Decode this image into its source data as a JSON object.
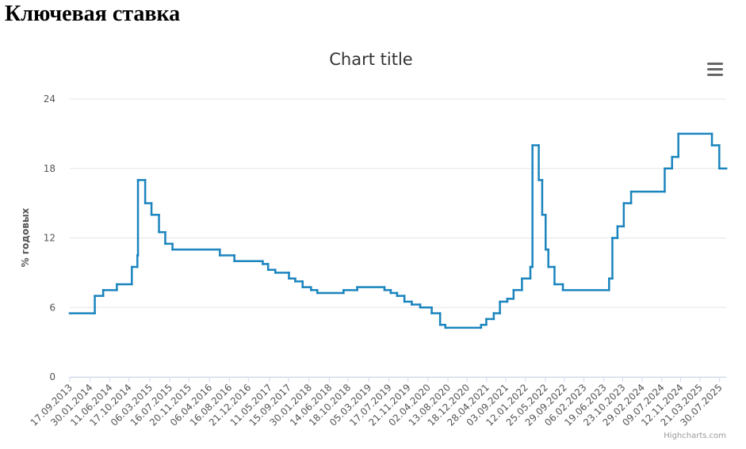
{
  "heading": "Ключевая ставка",
  "chart_data": {
    "type": "line",
    "step": true,
    "title": "Chart title",
    "y_label": "% годовых",
    "credits": "Highcharts.com",
    "series": [
      {
        "color": "#1a84be",
        "x": [
          "2013-09-17",
          "2014-03-03",
          "2014-04-28",
          "2014-07-28",
          "2014-11-05",
          "2014-12-12",
          "2014-12-16",
          "2015-02-02",
          "2015-03-16",
          "2015-05-05",
          "2015-06-16",
          "2015-08-03",
          "2016-06-14",
          "2016-09-19",
          "2017-03-27",
          "2017-05-02",
          "2017-06-19",
          "2017-09-18",
          "2017-10-30",
          "2017-12-18",
          "2018-02-12",
          "2018-03-26",
          "2018-09-17",
          "2018-12-17",
          "2019-06-17",
          "2019-07-29",
          "2019-09-09",
          "2019-10-28",
          "2019-12-16",
          "2020-02-10",
          "2020-04-27",
          "2020-06-22",
          "2020-07-27",
          "2021-03-22",
          "2021-04-26",
          "2021-06-15",
          "2021-07-26",
          "2021-09-13",
          "2021-10-25",
          "2021-12-20",
          "2022-02-14",
          "2022-02-28",
          "2022-04-11",
          "2022-05-04",
          "2022-05-27",
          "2022-06-14",
          "2022-07-25",
          "2022-09-19",
          "2023-07-24",
          "2023-08-15",
          "2023-09-18",
          "2023-10-30",
          "2023-12-18",
          "2024-07-29",
          "2024-09-16",
          "2024-10-28",
          "2025-06-09",
          "2025-07-28",
          "2025-09-12"
        ],
        "values": [
          5.5,
          7,
          7.5,
          8,
          9.5,
          10.5,
          17,
          15,
          14,
          12.5,
          11.5,
          11,
          10.5,
          10,
          9.75,
          9.25,
          9,
          8.5,
          8.25,
          7.75,
          7.5,
          7.25,
          7.5,
          7.75,
          7.5,
          7.25,
          7,
          6.5,
          6.25,
          6,
          5.5,
          4.5,
          4.25,
          4.5,
          5,
          5.5,
          6.5,
          6.75,
          7.5,
          8.5,
          9.5,
          20,
          17,
          14,
          11,
          9.5,
          8,
          7.5,
          8.5,
          12,
          13,
          15,
          16,
          18,
          19,
          21,
          20,
          18,
          18
        ]
      }
    ],
    "xlim": [
      "2013-09-17",
      "2025-09-12"
    ],
    "xticks": [
      {
        "value": "2013-09-17",
        "label": "17.09.2013"
      },
      {
        "value": "2014-01-30",
        "label": "30.01.2014"
      },
      {
        "value": "2014-06-11",
        "label": "11.06.2014"
      },
      {
        "value": "2014-10-17",
        "label": "17.10.2014"
      },
      {
        "value": "2015-03-06",
        "label": "06.03.2015"
      },
      {
        "value": "2015-07-16",
        "label": "16.07.2015"
      },
      {
        "value": "2015-11-20",
        "label": "20.11.2015"
      },
      {
        "value": "2016-04-06",
        "label": "06.04.2016"
      },
      {
        "value": "2016-08-16",
        "label": "16.08.2016"
      },
      {
        "value": "2016-12-21",
        "label": "21.12.2016"
      },
      {
        "value": "2017-05-11",
        "label": "11.05.2017"
      },
      {
        "value": "2017-09-15",
        "label": "15.09.2017"
      },
      {
        "value": "2018-01-30",
        "label": "30.01.2018"
      },
      {
        "value": "2018-06-14",
        "label": "14.06.2018"
      },
      {
        "value": "2018-10-18",
        "label": "18.10.2018"
      },
      {
        "value": "2019-03-05",
        "label": "05.03.2019"
      },
      {
        "value": "2019-07-17",
        "label": "17.07.2019"
      },
      {
        "value": "2019-11-21",
        "label": "21.11.2019"
      },
      {
        "value": "2020-04-02",
        "label": "02.04.2020"
      },
      {
        "value": "2020-08-13",
        "label": "13.08.2020"
      },
      {
        "value": "2020-12-18",
        "label": "18.12.2020"
      },
      {
        "value": "2021-04-28",
        "label": "28.04.2021"
      },
      {
        "value": "2021-09-03",
        "label": "03.09.2021"
      },
      {
        "value": "2022-01-12",
        "label": "12.01.2022"
      },
      {
        "value": "2022-05-25",
        "label": "25.05.2022"
      },
      {
        "value": "2022-09-29",
        "label": "29.09.2022"
      },
      {
        "value": "2023-02-06",
        "label": "06.02.2023"
      },
      {
        "value": "2023-06-19",
        "label": "19.06.2023"
      },
      {
        "value": "2023-10-23",
        "label": "23.10.2023"
      },
      {
        "value": "2024-02-29",
        "label": "29.02.2024"
      },
      {
        "value": "2024-07-09",
        "label": "09.07.2024"
      },
      {
        "value": "2024-11-12",
        "label": "12.11.2024"
      },
      {
        "value": "2025-03-21",
        "label": "21.03.2025"
      },
      {
        "value": "2025-07-30",
        "label": "30.07.2025"
      }
    ],
    "ylim": [
      0,
      24
    ],
    "yticks": [
      0,
      6,
      12,
      18,
      24
    ],
    "grid": true
  }
}
